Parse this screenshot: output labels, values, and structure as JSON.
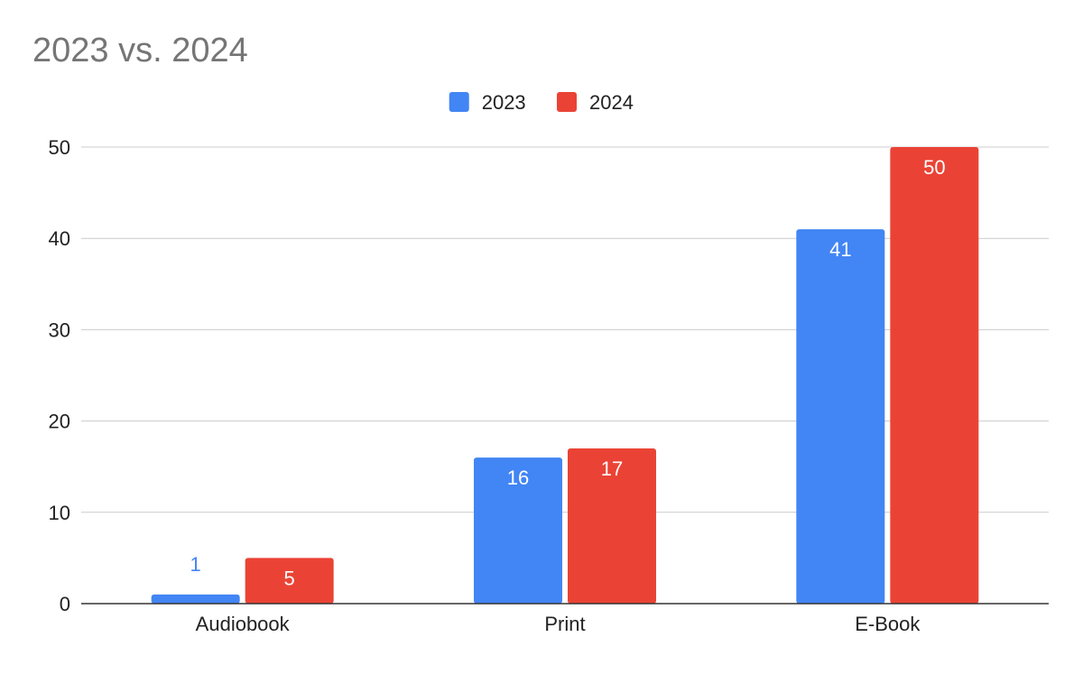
{
  "chart_data": {
    "type": "bar",
    "title": "2023 vs. 2024",
    "xlabel": "",
    "ylabel": "",
    "categories": [
      "Audiobook",
      "Print",
      "E-Book"
    ],
    "series": [
      {
        "name": "2023",
        "values": [
          1,
          16,
          41
        ],
        "color": "#4285f4"
      },
      {
        "name": "2024",
        "values": [
          5,
          17,
          50
        ],
        "color": "#ea4335"
      }
    ],
    "ylim": [
      0,
      50
    ],
    "yticks": [
      0,
      10,
      20,
      30,
      40,
      50
    ],
    "grid": true,
    "legend_position": "top",
    "data_labels": true,
    "colors": {
      "title": "#757575",
      "axis_text": "#222222",
      "gridline": "#cccccc",
      "baseline": "#333333",
      "label_inside": "#ffffff"
    }
  }
}
